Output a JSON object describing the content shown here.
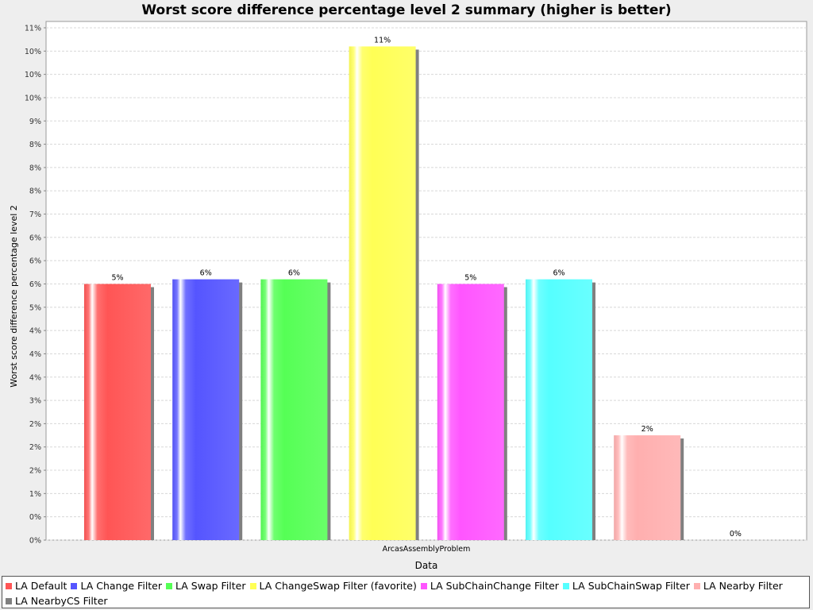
{
  "chart_data": {
    "type": "bar",
    "title": "Worst score difference percentage level 2 summary (higher is better)",
    "xlabel": "Data",
    "ylabel": "Worst score difference percentage level 2",
    "categories": [
      "ArcasAssemblyProblem"
    ],
    "ylim": [
      0,
      11
    ],
    "yticks": [
      {
        "value": 0,
        "label": "0%"
      },
      {
        "value": 0.5,
        "label": "0%"
      },
      {
        "value": 1,
        "label": "1%"
      },
      {
        "value": 1.5,
        "label": "2%"
      },
      {
        "value": 2,
        "label": "2%"
      },
      {
        "value": 2.5,
        "label": "2%"
      },
      {
        "value": 3,
        "label": "3%"
      },
      {
        "value": 3.5,
        "label": "4%"
      },
      {
        "value": 4,
        "label": "4%"
      },
      {
        "value": 4.5,
        "label": "4%"
      },
      {
        "value": 5,
        "label": "5%"
      },
      {
        "value": 5.5,
        "label": "6%"
      },
      {
        "value": 6,
        "label": "6%"
      },
      {
        "value": 6.5,
        "label": "6%"
      },
      {
        "value": 7,
        "label": "7%"
      },
      {
        "value": 7.5,
        "label": "8%"
      },
      {
        "value": 8,
        "label": "8%"
      },
      {
        "value": 8.5,
        "label": "8%"
      },
      {
        "value": 9,
        "label": "9%"
      },
      {
        "value": 9.5,
        "label": "10%"
      },
      {
        "value": 10,
        "label": "10%"
      },
      {
        "value": 10.5,
        "label": "10%"
      },
      {
        "value": 11,
        "label": "11%"
      }
    ],
    "grid": true,
    "legend_position": "bottom",
    "series": [
      {
        "name": "LA Default",
        "value": 5.5,
        "label": "5%",
        "color": "#ff5555"
      },
      {
        "name": "LA Change Filter",
        "value": 5.6,
        "label": "6%",
        "color": "#5555ff"
      },
      {
        "name": "LA Swap Filter",
        "value": 5.6,
        "label": "6%",
        "color": "#55ff55"
      },
      {
        "name": "LA ChangeSwap Filter (favorite)",
        "value": 10.6,
        "label": "11%",
        "color": "#ffff55"
      },
      {
        "name": "LA SubChainChange Filter",
        "value": 5.5,
        "label": "5%",
        "color": "#ff55ff"
      },
      {
        "name": "LA SubChainSwap Filter",
        "value": 5.6,
        "label": "6%",
        "color": "#55ffff"
      },
      {
        "name": "LA Nearby Filter",
        "value": 2.25,
        "label": "2%",
        "color": "#ffafaf"
      },
      {
        "name": "LA NearbyCS Filter",
        "value": 0,
        "label": "0%",
        "color": "#808080"
      }
    ]
  }
}
